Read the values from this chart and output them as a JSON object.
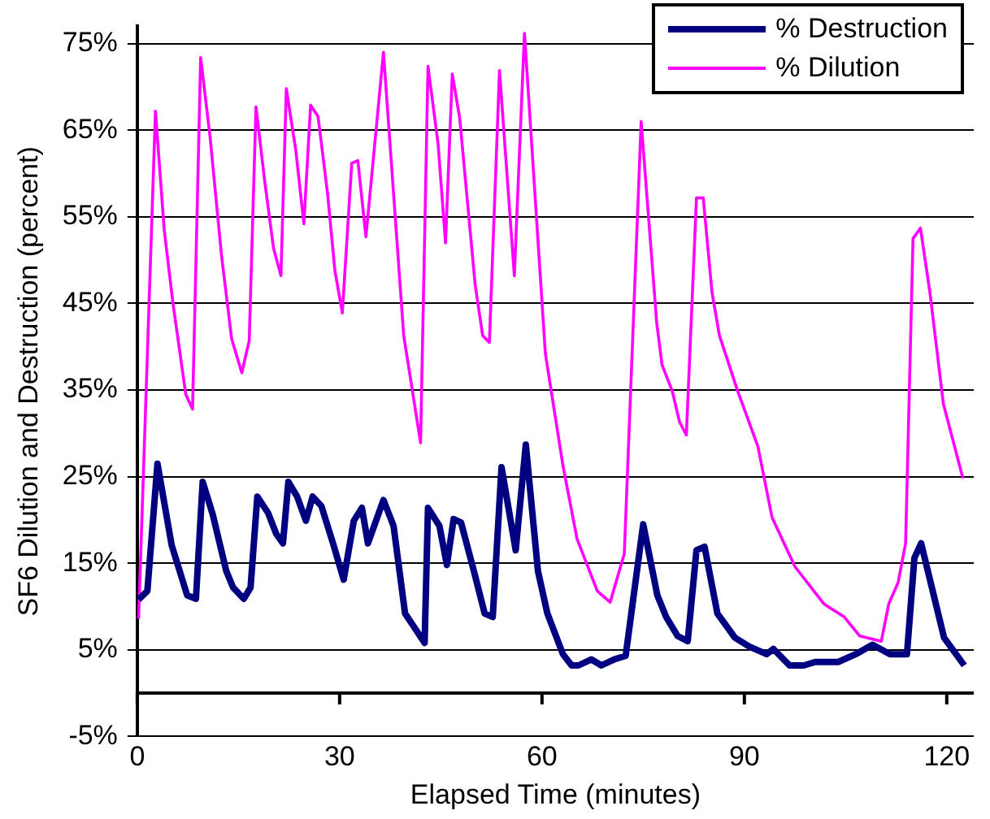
{
  "chart_data": {
    "type": "line",
    "xlabel": "Elapsed Time (minutes)",
    "ylabel": "SF6 Dilution and Destruction (percent)",
    "xlim": [
      0,
      124
    ],
    "xticks": [
      0,
      30,
      60,
      90,
      120
    ],
    "ylim": [
      -5,
      77
    ],
    "yticks": [
      {
        "value": -5,
        "label": "-5%"
      },
      {
        "value": 5,
        "label": "5%"
      },
      {
        "value": 15,
        "label": "15%"
      },
      {
        "value": 25,
        "label": "25%"
      },
      {
        "value": 35,
        "label": "35%"
      },
      {
        "value": 45,
        "label": "45%"
      },
      {
        "value": 55,
        "label": "55%"
      },
      {
        "value": 65,
        "label": "65%"
      },
      {
        "value": 75,
        "label": "75%"
      }
    ],
    "grid": "y",
    "legend": "top right",
    "marker": "none",
    "series": [
      {
        "name": "% Destruction",
        "color": "#000080",
        "x": [
          0.2,
          1.5,
          3.0,
          5.1,
          7.4,
          8.7,
          9.7,
          11.2,
          13.2,
          14.2,
          15.8,
          16.8,
          17.8,
          19.4,
          20.6,
          21.6,
          22.4,
          23.7,
          25.0,
          26.0,
          27.3,
          29.1,
          30.6,
          32.1,
          33.3,
          34.2,
          36.5,
          38.0,
          39.7,
          42.6,
          43.1,
          44.8,
          45.9,
          46.9,
          48.0,
          49.9,
          51.5,
          52.7,
          54.0,
          56.1,
          57.6,
          59.4,
          60.8,
          63.1,
          64.4,
          65.4,
          67.3,
          68.8,
          70.7,
          72.4,
          75.0,
          77.1,
          78.4,
          80.1,
          81.6,
          82.9,
          84.1,
          86.0,
          88.6,
          90.7,
          93.3,
          94.3,
          96.7,
          98.8,
          100.5,
          103.9,
          106.5,
          109.0,
          111.6,
          114.1,
          115.2,
          116.2,
          119.6,
          122.6
        ],
        "values": [
          10.8,
          11.8,
          26.5,
          17.1,
          11.3,
          10.9,
          24.4,
          20.6,
          14.1,
          12.2,
          10.9,
          12.2,
          22.7,
          20.8,
          18.4,
          17.3,
          24.4,
          22.7,
          19.9,
          22.7,
          21.6,
          17.1,
          13.1,
          19.9,
          21.4,
          17.3,
          22.3,
          19.3,
          9.2,
          5.8,
          21.4,
          19.3,
          14.8,
          20.1,
          19.7,
          14.1,
          9.2,
          8.8,
          26.1,
          16.5,
          28.7,
          14.1,
          9.2,
          4.5,
          3.2,
          3.2,
          3.9,
          3.2,
          3.9,
          4.3,
          19.5,
          11.3,
          8.8,
          6.6,
          6.0,
          16.5,
          16.9,
          9.2,
          6.4,
          5.4,
          4.5,
          5.1,
          3.2,
          3.2,
          3.6,
          3.6,
          4.5,
          5.6,
          4.5,
          4.5,
          15.6,
          17.3,
          6.4,
          3.2
        ]
      },
      {
        "name": "% Dilution",
        "color": "#ff00ff",
        "x": [
          0.2,
          2.7,
          4.0,
          5.3,
          7.2,
          8.2,
          9.4,
          10.8,
          12.5,
          14.0,
          15.5,
          16.6,
          17.6,
          18.9,
          20.2,
          21.3,
          22.1,
          23.5,
          24.7,
          25.7,
          26.8,
          28.2,
          29.3,
          30.4,
          31.8,
          32.7,
          33.9,
          36.5,
          39.5,
          42.0,
          43.1,
          44.6,
          45.7,
          46.7,
          47.8,
          50.1,
          51.2,
          52.2,
          53.7,
          55.9,
          57.4,
          60.5,
          63.1,
          65.2,
          68.2,
          70.1,
          72.2,
          74.7,
          77.0,
          77.8,
          79.3,
          80.4,
          81.4,
          82.9,
          83.9,
          85.2,
          86.3,
          89.0,
          92.0,
          94.1,
          97.5,
          101.8,
          104.8,
          107.1,
          110.3,
          111.4,
          112.8,
          113.9,
          115.0,
          116.1,
          117.5,
          119.5,
          122.4
        ],
        "values": [
          8.6,
          67.2,
          53.5,
          45.0,
          34.5,
          32.8,
          73.4,
          64.2,
          50.5,
          40.9,
          37.0,
          40.7,
          67.7,
          59.1,
          51.4,
          48.2,
          69.8,
          62.7,
          54.2,
          67.9,
          66.6,
          57.8,
          48.8,
          43.9,
          61.2,
          61.5,
          52.7,
          74.0,
          41.3,
          28.9,
          72.4,
          63.4,
          52.0,
          71.5,
          66.4,
          47.1,
          41.3,
          40.5,
          71.9,
          48.2,
          76.2,
          39.2,
          26.3,
          17.8,
          11.8,
          10.5,
          16.1,
          66.0,
          42.8,
          37.9,
          34.9,
          31.3,
          29.8,
          57.2,
          57.2,
          46.3,
          41.3,
          34.9,
          28.5,
          20.3,
          14.6,
          10.3,
          8.8,
          6.6,
          6.0,
          10.3,
          12.8,
          17.3,
          52.5,
          53.7,
          46.3,
          33.4,
          24.8
        ]
      }
    ]
  }
}
